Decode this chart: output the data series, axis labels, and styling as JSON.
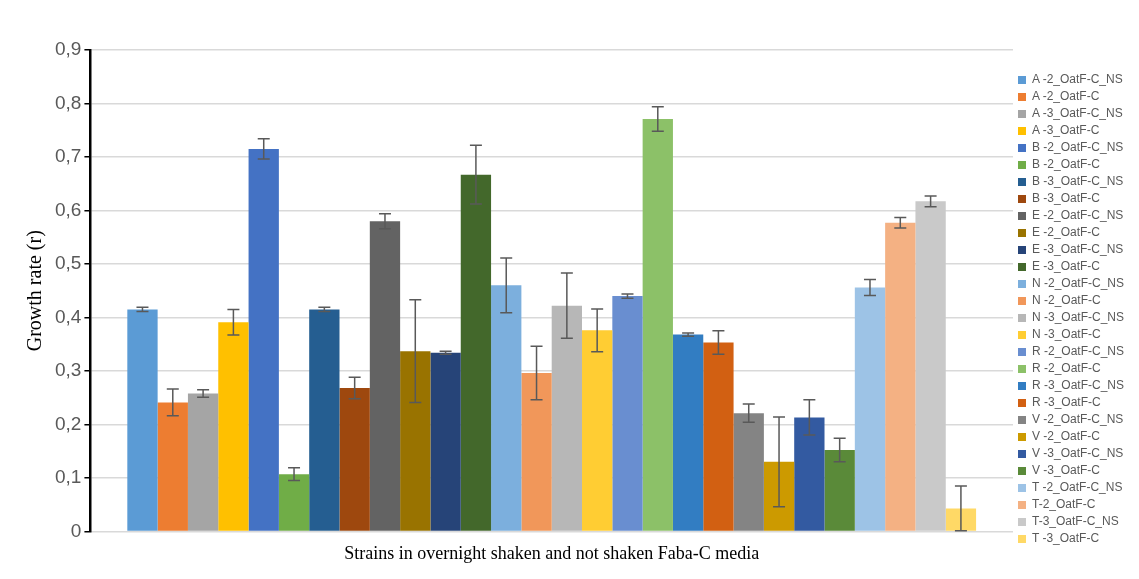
{
  "chart_data": {
    "type": "bar",
    "xlabel": "Strains in overnight shaken and not shaken Faba-C media",
    "ylabel": "Growth rate (r)",
    "categories": [
      null
    ],
    "series": [
      {
        "name": "A -2_OatF-C_NS",
        "color": "#5b9bd5",
        "values": [
          0.415
        ],
        "errors": [
          0.004
        ]
      },
      {
        "name": "A -2_OatF-C",
        "color": "#ed7d31",
        "values": [
          0.241
        ],
        "errors": [
          0.025
        ]
      },
      {
        "name": "A -3_OatF-C_NS",
        "color": "#a5a5a5",
        "values": [
          0.258
        ],
        "errors": [
          0.007
        ]
      },
      {
        "name": "A -3_OatF-C",
        "color": "#ffc000",
        "values": [
          0.391
        ],
        "errors": [
          0.024
        ]
      },
      {
        "name": "B -2_OatF-C_NS",
        "color": "#4472c4",
        "values": [
          0.715
        ],
        "errors": [
          0.019
        ]
      },
      {
        "name": "B -2_OatF-C",
        "color": "#70ad47",
        "values": [
          0.107
        ],
        "errors": [
          0.012
        ]
      },
      {
        "name": "B -3_OatF-C_NS",
        "color": "#255e91",
        "values": [
          0.415
        ],
        "errors": [
          0.004
        ]
      },
      {
        "name": "B -3_OatF-C",
        "color": "#9e480e",
        "values": [
          0.268
        ],
        "errors": [
          0.02
        ]
      },
      {
        "name": "E -2_OatF-C_NS",
        "color": "#636363",
        "values": [
          0.58
        ],
        "errors": [
          0.014
        ]
      },
      {
        "name": "E -2_OatF-C",
        "color": "#997300",
        "values": [
          0.337
        ],
        "errors": [
          0.096
        ]
      },
      {
        "name": "E -3_OatF-C_NS",
        "color": "#264478",
        "values": [
          0.334
        ],
        "errors": [
          0.003
        ]
      },
      {
        "name": "E -3_OatF-C",
        "color": "#43682b",
        "values": [
          0.667
        ],
        "errors": [
          0.055
        ]
      },
      {
        "name": "N -2_OatF-C_NS",
        "color": "#7cafdd",
        "values": [
          0.46
        ],
        "errors": [
          0.051
        ]
      },
      {
        "name": "N -2_OatF-C",
        "color": "#f1975a",
        "values": [
          0.296
        ],
        "errors": [
          0.05
        ]
      },
      {
        "name": "N -3_OatF-C_NS",
        "color": "#b7b7b7",
        "values": [
          0.422
        ],
        "errors": [
          0.061
        ]
      },
      {
        "name": "N -3_OatF-C",
        "color": "#ffcd33",
        "values": [
          0.376
        ],
        "errors": [
          0.04
        ]
      },
      {
        "name": "R -2_OatF-C_NS",
        "color": "#698ed0",
        "values": [
          0.44
        ],
        "errors": [
          0.004
        ]
      },
      {
        "name": "R -2_OatF-C",
        "color": "#8cc168",
        "values": [
          0.771
        ],
        "errors": [
          0.023
        ]
      },
      {
        "name": "R -3_OatF-C_NS",
        "color": "#327dc2",
        "values": [
          0.368
        ],
        "errors": [
          0.003
        ]
      },
      {
        "name": "R -3_OatF-C",
        "color": "#d26012",
        "values": [
          0.353
        ],
        "errors": [
          0.022
        ]
      },
      {
        "name": "V -2_OatF-C_NS",
        "color": "#848484",
        "values": [
          0.221
        ],
        "errors": [
          0.017
        ]
      },
      {
        "name": "V -2_OatF-C",
        "color": "#cc9a00",
        "values": [
          0.13
        ],
        "errors": [
          0.084
        ]
      },
      {
        "name": "V -3_OatF-C_NS",
        "color": "#335aa1",
        "values": [
          0.213
        ],
        "errors": [
          0.033
        ]
      },
      {
        "name": "V -3_OatF-C",
        "color": "#5a8a39",
        "values": [
          0.152
        ],
        "errors": [
          0.022
        ]
      },
      {
        "name": "T -2_OatF-C_NS",
        "color": "#9dc3e6",
        "values": [
          0.456
        ],
        "errors": [
          0.015
        ]
      },
      {
        "name": "T-2_OatF-C",
        "color": "#f4b183",
        "values": [
          0.577
        ],
        "errors": [
          0.01
        ]
      },
      {
        "name": "T-3_OatF-C_NS",
        "color": "#c9c9c9",
        "values": [
          0.617
        ],
        "errors": [
          0.01
        ]
      },
      {
        "name": "T -3_OatF-C",
        "color": "#ffd966",
        "values": [
          0.043
        ],
        "errors": [
          0.042
        ]
      }
    ],
    "ylim": [
      0,
      0.9
    ],
    "yticks": [
      0,
      {
        "value": 0.1,
        "label": "0,1"
      },
      {
        "value": 0.2,
        "label": "0,2"
      },
      {
        "value": 0.3,
        "label": "0,3"
      },
      {
        "value": 0.4,
        "label": "0,4"
      },
      {
        "value": 0.5,
        "label": "0,5"
      },
      {
        "value": 0.6,
        "label": "0,6"
      },
      {
        "value": 0.7,
        "label": "0,7"
      },
      {
        "value": 0.8,
        "label": "0,8"
      },
      {
        "value": 0.9,
        "label": "0,9"
      }
    ],
    "grid": "y",
    "legend": "right"
  }
}
